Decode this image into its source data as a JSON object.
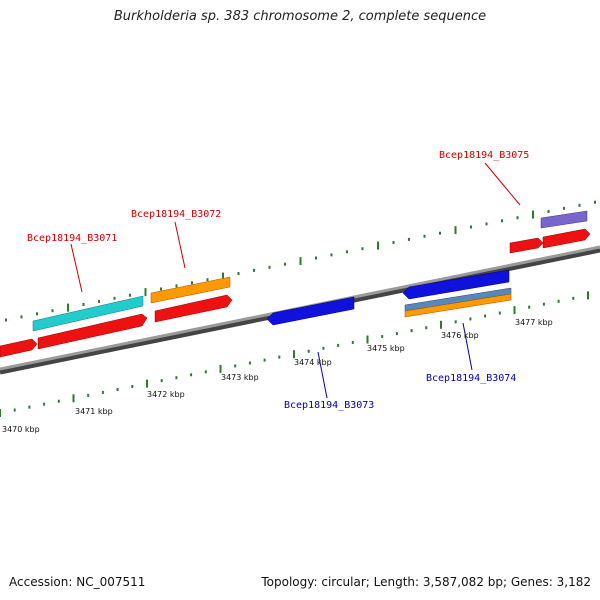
{
  "title": "Burkholderia sp. 383 chromosome 2, complete sequence",
  "footer": {
    "accession": "Accession: NC_007511",
    "summary": "Topology: circular; Length: 3,587,082 bp; Genes: 3,182"
  },
  "colors": {
    "backbone": "#888888",
    "tick": "#2d7a2d",
    "label_forward": "#cc0000",
    "label_reverse": "#0000aa",
    "red_cds": "#ee1111",
    "cyan_cds": "#22cccc",
    "orange_cds": "#ff9900",
    "blue_cds": "#1111dd",
    "purple_cds": "#7766cc",
    "steel_cds": "#5588bb"
  },
  "scale_labels": [
    "3470 kbp",
    "3471 kbp",
    "3472 kbp",
    "3473 kbp",
    "3474 kbp",
    "3475 kbp",
    "3476 kbp",
    "3477 kbp"
  ],
  "gene_labels": [
    {
      "text": "Bcep18194_B3071",
      "strand": "forward"
    },
    {
      "text": "Bcep18194_B3072",
      "strand": "forward"
    },
    {
      "text": "Bcep18194_B3075",
      "strand": "forward"
    },
    {
      "text": "Bcep18194_B3073",
      "strand": "reverse"
    },
    {
      "text": "Bcep18194_B3074",
      "strand": "reverse"
    }
  ]
}
